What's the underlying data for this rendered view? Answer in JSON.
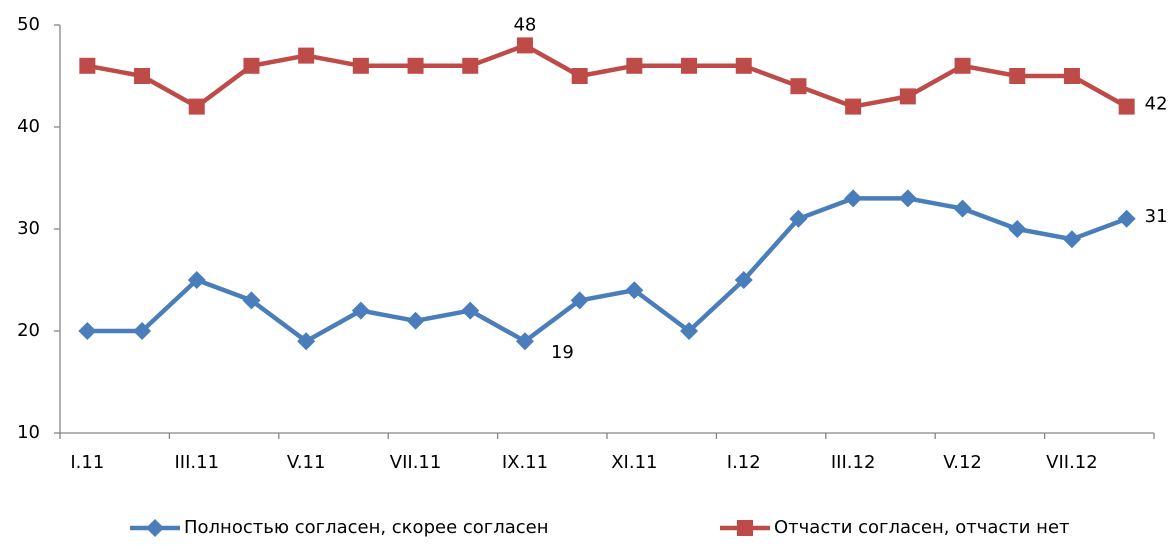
{
  "chart_data": {
    "type": "line",
    "categories": [
      "I.11",
      null,
      "III.11",
      null,
      "V.11",
      null,
      "VII.11",
      null,
      "IX.11",
      null,
      "XI.11",
      null,
      "I.12",
      null,
      "III.12",
      null,
      "V.12",
      null,
      "VII.12",
      null
    ],
    "series": [
      {
        "name": "Полностью согласен, скорее согласен",
        "color": "#4a7ebb",
        "marker": "diamond",
        "values": [
          20,
          20,
          25,
          23,
          19,
          22,
          21,
          22,
          19,
          23,
          24,
          20,
          25,
          31,
          33,
          33,
          32,
          30,
          29,
          31
        ],
        "value_labels": [
          null,
          null,
          null,
          null,
          null,
          null,
          null,
          null,
          "19",
          null,
          null,
          null,
          null,
          null,
          null,
          null,
          null,
          null,
          null,
          "31"
        ]
      },
      {
        "name": "Отчасти согласен, отчасти нет",
        "color": "#be4b48",
        "marker": "square",
        "values": [
          46,
          45,
          42,
          46,
          47,
          46,
          46,
          46,
          48,
          45,
          46,
          46,
          46,
          44,
          42,
          43,
          46,
          45,
          45,
          42
        ],
        "value_labels": [
          null,
          null,
          null,
          null,
          null,
          null,
          null,
          null,
          "48",
          null,
          null,
          null,
          null,
          null,
          null,
          null,
          null,
          null,
          null,
          "42"
        ]
      }
    ],
    "ylim": [
      10,
      50
    ],
    "yticks": [
      10,
      20,
      30,
      40,
      50
    ],
    "grid": false,
    "legend": "bottom"
  }
}
